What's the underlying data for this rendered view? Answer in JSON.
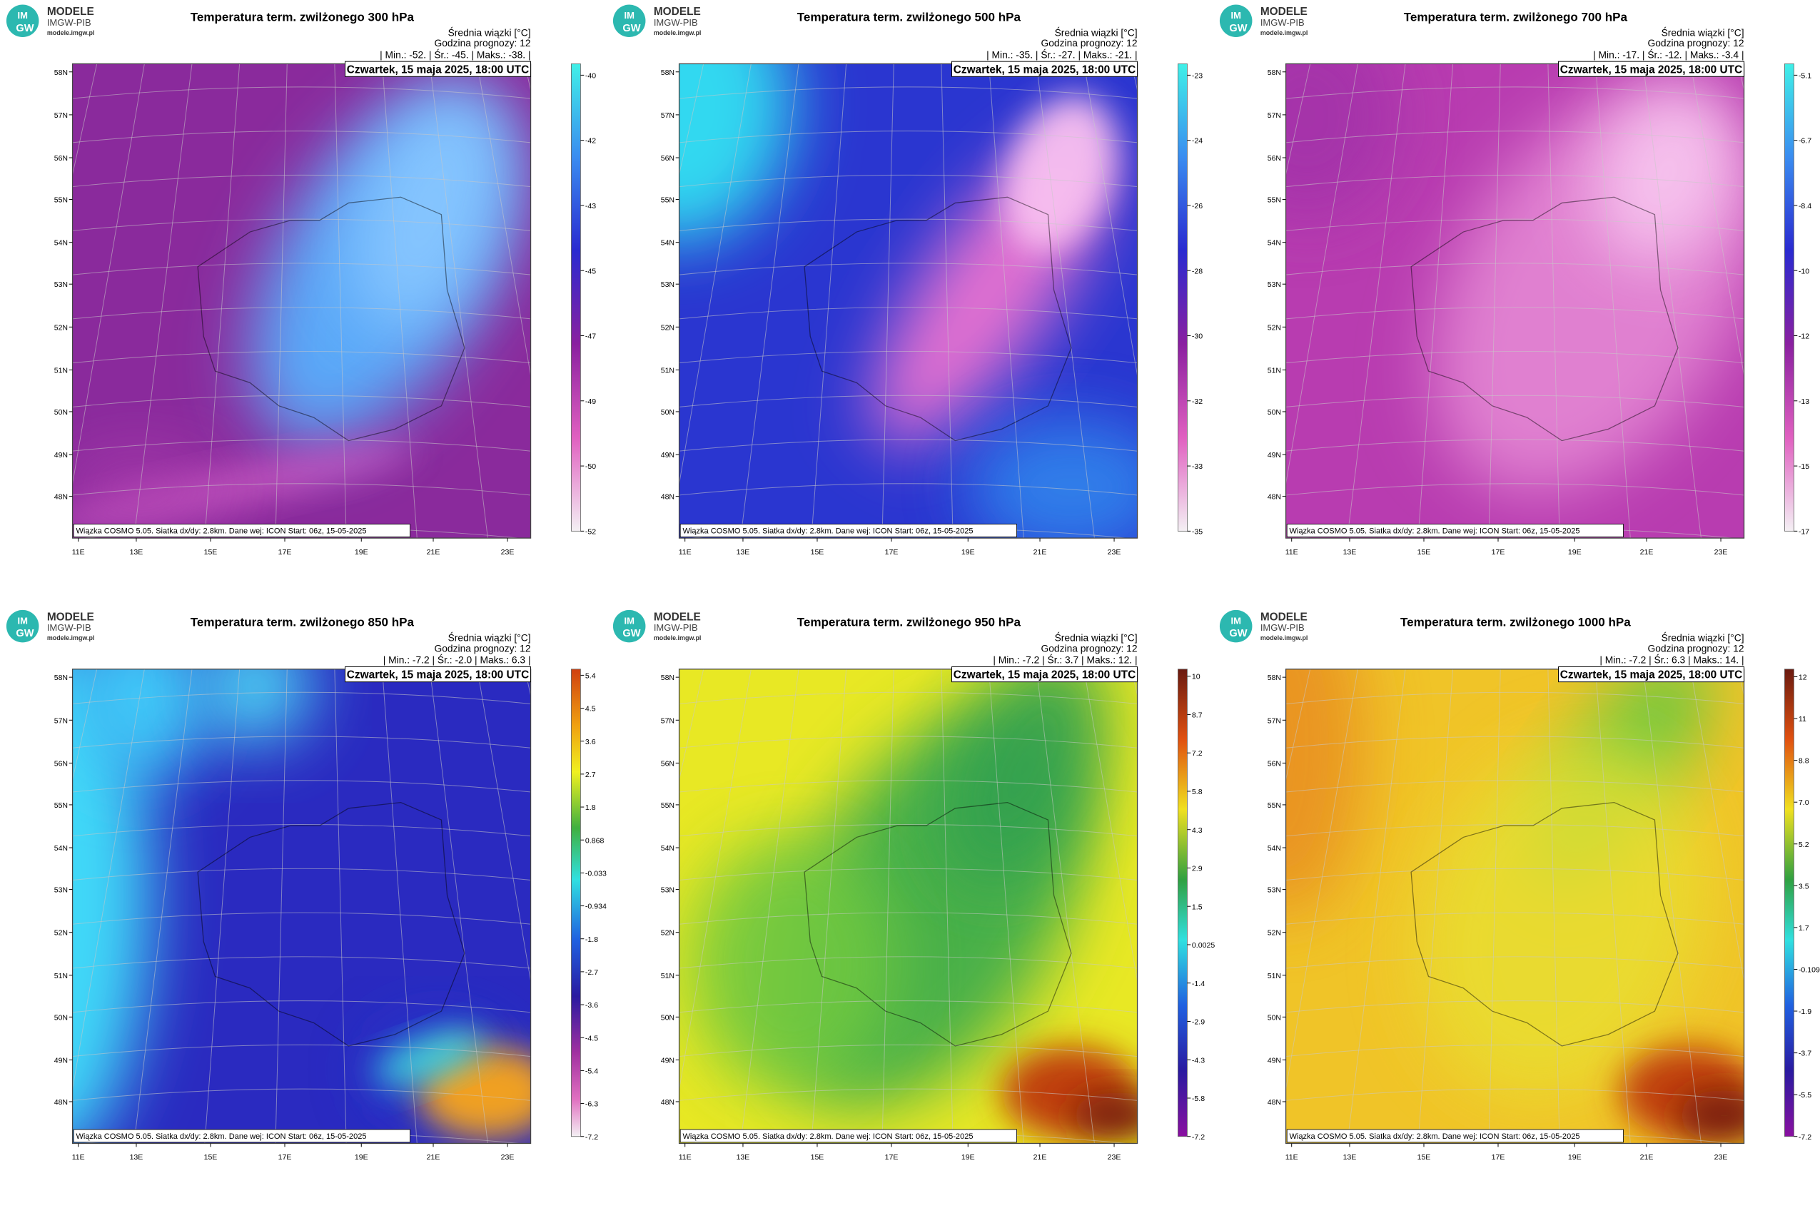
{
  "logo": {
    "line1": "MODELE",
    "line2": "IMGW-PIB",
    "line3": "modele.imgw.pl",
    "badge_top": "IM",
    "badge_bottom": "GW"
  },
  "subtitle": "Średnia wiązki [°C]",
  "forecast_hour": "Godzina prognozy: 12",
  "date": "Czwartek, 15 maja 2025, 18:00 UTC",
  "footer": "Wiązka COSMO 5.05. Siatka dx/dy: 2.8km. Dane wej: ICON Start: 06z, 15-05-2025",
  "lat_labels": [
    "58N",
    "57N",
    "56N",
    "55N",
    "54N",
    "53N",
    "52N",
    "51N",
    "50N",
    "49N",
    "48N"
  ],
  "lon_labels": [
    "11E",
    "13E",
    "15E",
    "17E",
    "19E",
    "21E",
    "23E"
  ],
  "panels": [
    {
      "title": "Temperatura term. zwilżonego 300 hPa",
      "stats": "| Min.:   -52. | Śr.:   -45. | Maks.:   -38. |",
      "colorbar": [
        "-40",
        "-42",
        "-43",
        "-45",
        "-47",
        "-49",
        "-50",
        "-52"
      ]
    },
    {
      "title": "Temperatura term. zwilżonego 500 hPa",
      "stats": "| Min.:   -35. | Śr.:   -27. | Maks.:   -21. |",
      "colorbar": [
        "-23",
        "-24",
        "-26",
        "-28",
        "-30",
        "-32",
        "-33",
        "-35"
      ]
    },
    {
      "title": "Temperatura term. zwilżonego 700 hPa",
      "stats": "| Min.:   -17. | Śr.:   -12. | Maks.:   -3.4 |",
      "colorbar": [
        "-5.1",
        "-6.7",
        "-8.4",
        "-10",
        "-12",
        "-13",
        "-15",
        "-17"
      ]
    },
    {
      "title": "Temperatura term. zwilżonego 850 hPa",
      "stats": "| Min.:   -7.2 | Śr.:   -2.0 | Maks.:   6.3 |",
      "colorbar": [
        "5.4",
        "4.5",
        "3.6",
        "2.7",
        "1.8",
        "0.868",
        "-0.033",
        "-0.934",
        "-1.8",
        "-2.7",
        "-3.6",
        "-4.5",
        "-5.4",
        "-6.3",
        "-7.2"
      ]
    },
    {
      "title": "Temperatura term. zwilżonego 950 hPa",
      "stats": "| Min.:   -7.2 | Śr.:   3.7 | Maks.:   12. |",
      "colorbar": [
        "10",
        "8.7",
        "7.2",
        "5.8",
        "4.3",
        "2.9",
        "1.5",
        "0.0025",
        "-1.4",
        "-2.9",
        "-4.3",
        "-5.8",
        "-7.2"
      ]
    },
    {
      "title": "Temperatura term. zwilżonego 1000 hPa",
      "stats": "| Min.:   -7.2 | Śr.:   6.3 | Maks.:   14. |",
      "colorbar": [
        "12",
        "11",
        "8.8",
        "7.0",
        "5.2",
        "3.5",
        "1.7",
        "-0.109",
        "-1.9",
        "-3.7",
        "-5.5",
        "-7.2"
      ]
    }
  ]
}
